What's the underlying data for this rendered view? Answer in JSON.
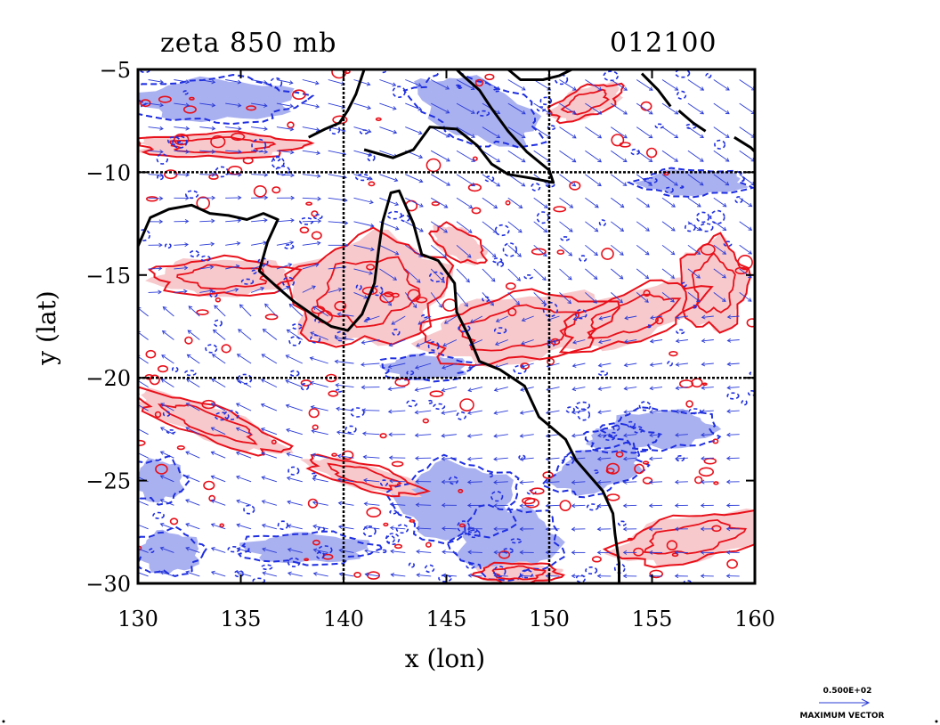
{
  "plot": {
    "title_left": "zeta 850 mb",
    "title_right": "012100",
    "xlabel": "x (lon)",
    "ylabel": "y (lat)"
  },
  "legend": {
    "magnitude": "0.500E+02",
    "label": "MAXIMUM VECTOR"
  },
  "colors": {
    "positive_fill": "#f7c9cc",
    "positive_line": "#e8101a",
    "negative_fill": "#aab1f0",
    "negative_line": "#1f2fe0",
    "vector": "#2a3bd6",
    "coast": "#000000"
  },
  "chart_data": {
    "type": "contour-map",
    "xlim": [
      130,
      160
    ],
    "ylim": [
      -30,
      -5
    ],
    "xticks": [
      130,
      135,
      140,
      145,
      150,
      155,
      160
    ],
    "yticks": [
      -5,
      -10,
      -15,
      -20,
      -25,
      -30
    ],
    "xtick_labels": [
      "130",
      "135",
      "140",
      "145",
      "150",
      "155",
      "160"
    ],
    "ytick_labels": [
      "−5",
      "−10",
      "−15",
      "−20",
      "−25",
      "−30"
    ],
    "gridlines_lon": [
      140,
      150
    ],
    "gridlines_lat": [
      -10,
      -20
    ],
    "grid": true,
    "coastline": [
      [
        [
          130,
          -13.6
        ],
        [
          130.6,
          -12.2
        ],
        [
          131.5,
          -11.8
        ],
        [
          132.6,
          -11.6
        ],
        [
          133.5,
          -12.0
        ],
        [
          134.4,
          -12.1
        ],
        [
          135.3,
          -12.3
        ],
        [
          136.1,
          -12.0
        ],
        [
          136.8,
          -12.3
        ],
        [
          136.3,
          -13.4
        ],
        [
          135.9,
          -14.8
        ],
        [
          136.9,
          -15.7
        ],
        [
          137.6,
          -16.3
        ],
        [
          138.6,
          -17.0
        ],
        [
          139.4,
          -17.5
        ],
        [
          140.2,
          -17.7
        ],
        [
          140.9,
          -16.9
        ],
        [
          141.5,
          -15.4
        ],
        [
          141.7,
          -13.8
        ],
        [
          141.9,
          -12.4
        ],
        [
          142.3,
          -11.0
        ],
        [
          142.7,
          -10.9
        ],
        [
          143.4,
          -12.5
        ],
        [
          143.8,
          -14.0
        ],
        [
          144.6,
          -14.3
        ],
        [
          145.4,
          -15.4
        ],
        [
          145.5,
          -16.8
        ],
        [
          146.1,
          -18.0
        ],
        [
          146.6,
          -19.2
        ],
        [
          147.6,
          -19.6
        ],
        [
          148.8,
          -20.4
        ],
        [
          149.5,
          -21.9
        ],
        [
          150.8,
          -23.0
        ],
        [
          151.3,
          -24.0
        ],
        [
          152.6,
          -25.5
        ],
        [
          153.1,
          -26.6
        ],
        [
          153.2,
          -27.6
        ],
        [
          153.4,
          -29.0
        ],
        [
          153.4,
          -30
        ]
      ],
      [
        [
          138.3,
          -8.3
        ],
        [
          139.1,
          -7.9
        ],
        [
          139.8,
          -7.6
        ],
        [
          140.2,
          -7.0
        ],
        [
          140.6,
          -6.2
        ],
        [
          141.0,
          -5
        ]
      ],
      [
        [
          141.0,
          -8.9
        ],
        [
          142.4,
          -9.3
        ],
        [
          143.4,
          -8.9
        ],
        [
          144.2,
          -7.8
        ],
        [
          145.5,
          -7.9
        ],
        [
          146.5,
          -8.7
        ],
        [
          147.2,
          -9.6
        ],
        [
          148.0,
          -10.1
        ],
        [
          149.2,
          -10.3
        ],
        [
          150.2,
          -10.5
        ],
        [
          150.0,
          -9.9
        ],
        [
          148.9,
          -9.0
        ],
        [
          148.0,
          -8.0
        ],
        [
          147.2,
          -6.9
        ],
        [
          146.6,
          -6.0
        ],
        [
          145.8,
          -5.3
        ],
        [
          145.5,
          -5
        ]
      ],
      [
        [
          148.0,
          -5
        ],
        [
          148.6,
          -5.5
        ],
        [
          149.7,
          -5.5
        ],
        [
          150.5,
          -5.3
        ],
        [
          151.1,
          -5
        ]
      ],
      [
        [
          154.5,
          -5.2
        ],
        [
          155.3,
          -6.0
        ],
        [
          155.9,
          -6.8
        ]
      ],
      [
        [
          156.3,
          -7.0
        ],
        [
          157.0,
          -7.6
        ],
        [
          157.6,
          -8.0
        ]
      ],
      [
        [
          159.0,
          -8.3
        ],
        [
          159.8,
          -8.8
        ],
        [
          160,
          -9.0
        ]
      ]
    ],
    "positive_regions": [
      {
        "cx": 141.2,
        "cy": -15.8,
        "rx": 3.8,
        "ry": 2.6,
        "rot": -10
      },
      {
        "cx": 148.5,
        "cy": -17.6,
        "rx": 4.6,
        "ry": 1.6,
        "rot": -8
      },
      {
        "cx": 154.0,
        "cy": -17.0,
        "rx": 3.6,
        "ry": 1.2,
        "rot": -20
      },
      {
        "cx": 158.0,
        "cy": -15.5,
        "rx": 1.6,
        "ry": 2.2,
        "rot": 0
      },
      {
        "cx": 134.2,
        "cy": -15.1,
        "rx": 3.4,
        "ry": 0.9,
        "rot": 0
      },
      {
        "cx": 133.5,
        "cy": -22.2,
        "rx": 3.8,
        "ry": 0.8,
        "rot": 20
      },
      {
        "cx": 141.0,
        "cy": -24.8,
        "rx": 2.8,
        "ry": 0.6,
        "rot": 15
      },
      {
        "cx": 157.0,
        "cy": -27.8,
        "rx": 3.8,
        "ry": 1.1,
        "rot": -10
      },
      {
        "cx": 145.6,
        "cy": -13.5,
        "rx": 1.4,
        "ry": 0.7,
        "rot": 30
      },
      {
        "cx": 151.8,
        "cy": -6.6,
        "rx": 1.8,
        "ry": 0.7,
        "rot": -20
      },
      {
        "cx": 134.0,
        "cy": -8.7,
        "rx": 4.0,
        "ry": 0.6,
        "rot": 0
      },
      {
        "cx": 148.5,
        "cy": -29.5,
        "rx": 2.0,
        "ry": 0.5,
        "rot": 0
      }
    ],
    "negative_regions": [
      {
        "cx": 133.8,
        "cy": -6.5,
        "rx": 3.8,
        "ry": 1.0,
        "rot": 0
      },
      {
        "cx": 146.5,
        "cy": -7.0,
        "rx": 3.0,
        "ry": 1.4,
        "rot": 20
      },
      {
        "cx": 145.5,
        "cy": -26.0,
        "rx": 2.8,
        "ry": 1.8,
        "rot": 0
      },
      {
        "cx": 148.0,
        "cy": -28.0,
        "rx": 2.4,
        "ry": 1.6,
        "rot": 0
      },
      {
        "cx": 152.3,
        "cy": -24.5,
        "rx": 2.2,
        "ry": 1.0,
        "rot": -15
      },
      {
        "cx": 131.5,
        "cy": -28.5,
        "rx": 1.5,
        "ry": 1.0,
        "rot": 0
      },
      {
        "cx": 131.0,
        "cy": -25.0,
        "rx": 1.2,
        "ry": 1.0,
        "rot": 0
      },
      {
        "cx": 138.2,
        "cy": -28.3,
        "rx": 3.0,
        "ry": 0.7,
        "rot": 0
      },
      {
        "cx": 155.5,
        "cy": -22.5,
        "rx": 2.5,
        "ry": 0.9,
        "rot": 0
      },
      {
        "cx": 157.0,
        "cy": -10.5,
        "rx": 2.5,
        "ry": 0.6,
        "rot": 0
      },
      {
        "cx": 153.5,
        "cy": -23.0,
        "rx": 1.6,
        "ry": 0.6,
        "rot": 0
      },
      {
        "cx": 144.0,
        "cy": -19.5,
        "rx": 2.0,
        "ry": 0.6,
        "rot": 0
      }
    ]
  }
}
